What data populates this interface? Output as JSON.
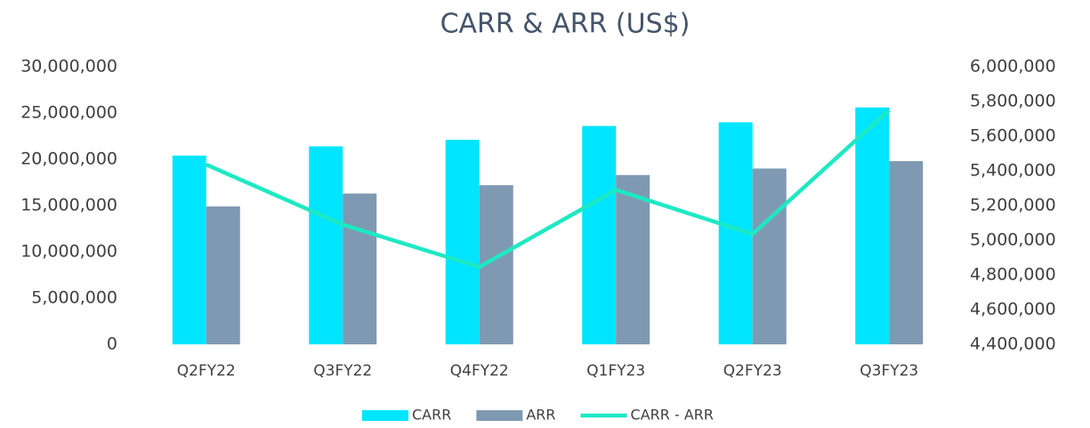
{
  "chart_data": {
    "type": "bar_line",
    "title": "CARR & ARR (US$)",
    "categories": [
      "Q2FY22",
      "Q3FY22",
      "Q4FY22",
      "Q1FY23",
      "Q2FY23",
      "Q3FY23"
    ],
    "series": [
      {
        "name": "CARR",
        "type": "bar",
        "color": "#00e5ff",
        "values": [
          20400000,
          21400000,
          22100000,
          23600000,
          24000000,
          25600000
        ]
      },
      {
        "name": "ARR",
        "type": "bar",
        "color": "#7f99b2",
        "values": [
          14900000,
          16300000,
          17200000,
          18300000,
          19000000,
          19800000
        ]
      },
      {
        "name": "CARR - ARR",
        "type": "line",
        "axis": "y2",
        "color": "#1de9c3",
        "values": [
          5436000,
          5090000,
          4846000,
          5290000,
          5036000,
          5750000
        ]
      }
    ],
    "ylim": [
      0,
      30000000
    ],
    "yticks": [
      0,
      {
        "value": 5000000,
        "label": "5,000,000"
      },
      {
        "value": 10000000,
        "label": "10,000,000"
      },
      {
        "value": 15000000,
        "label": "15,000,000"
      },
      {
        "value": 20000000,
        "label": "20,000,000"
      },
      {
        "value": 25000000,
        "label": "25,000,000"
      },
      {
        "value": 30000000,
        "label": "30,000,000"
      }
    ],
    "y2lim": [
      4400000,
      6000000
    ],
    "y2ticks": [
      {
        "value": 4400000,
        "label": "4,400,000"
      },
      {
        "value": 4600000,
        "label": "4,600,000"
      },
      {
        "value": 4800000,
        "label": "4,800,000"
      },
      {
        "value": 5000000,
        "label": "5,000,000"
      },
      {
        "value": 5200000,
        "label": "5,200,000"
      },
      {
        "value": 5400000,
        "label": "5,400,000"
      },
      {
        "value": 5600000,
        "label": "5,600,000"
      },
      {
        "value": 5800000,
        "label": "5,800,000"
      },
      {
        "value": 6000000,
        "label": "6,000,000"
      }
    ],
    "legend": "bottom"
  }
}
